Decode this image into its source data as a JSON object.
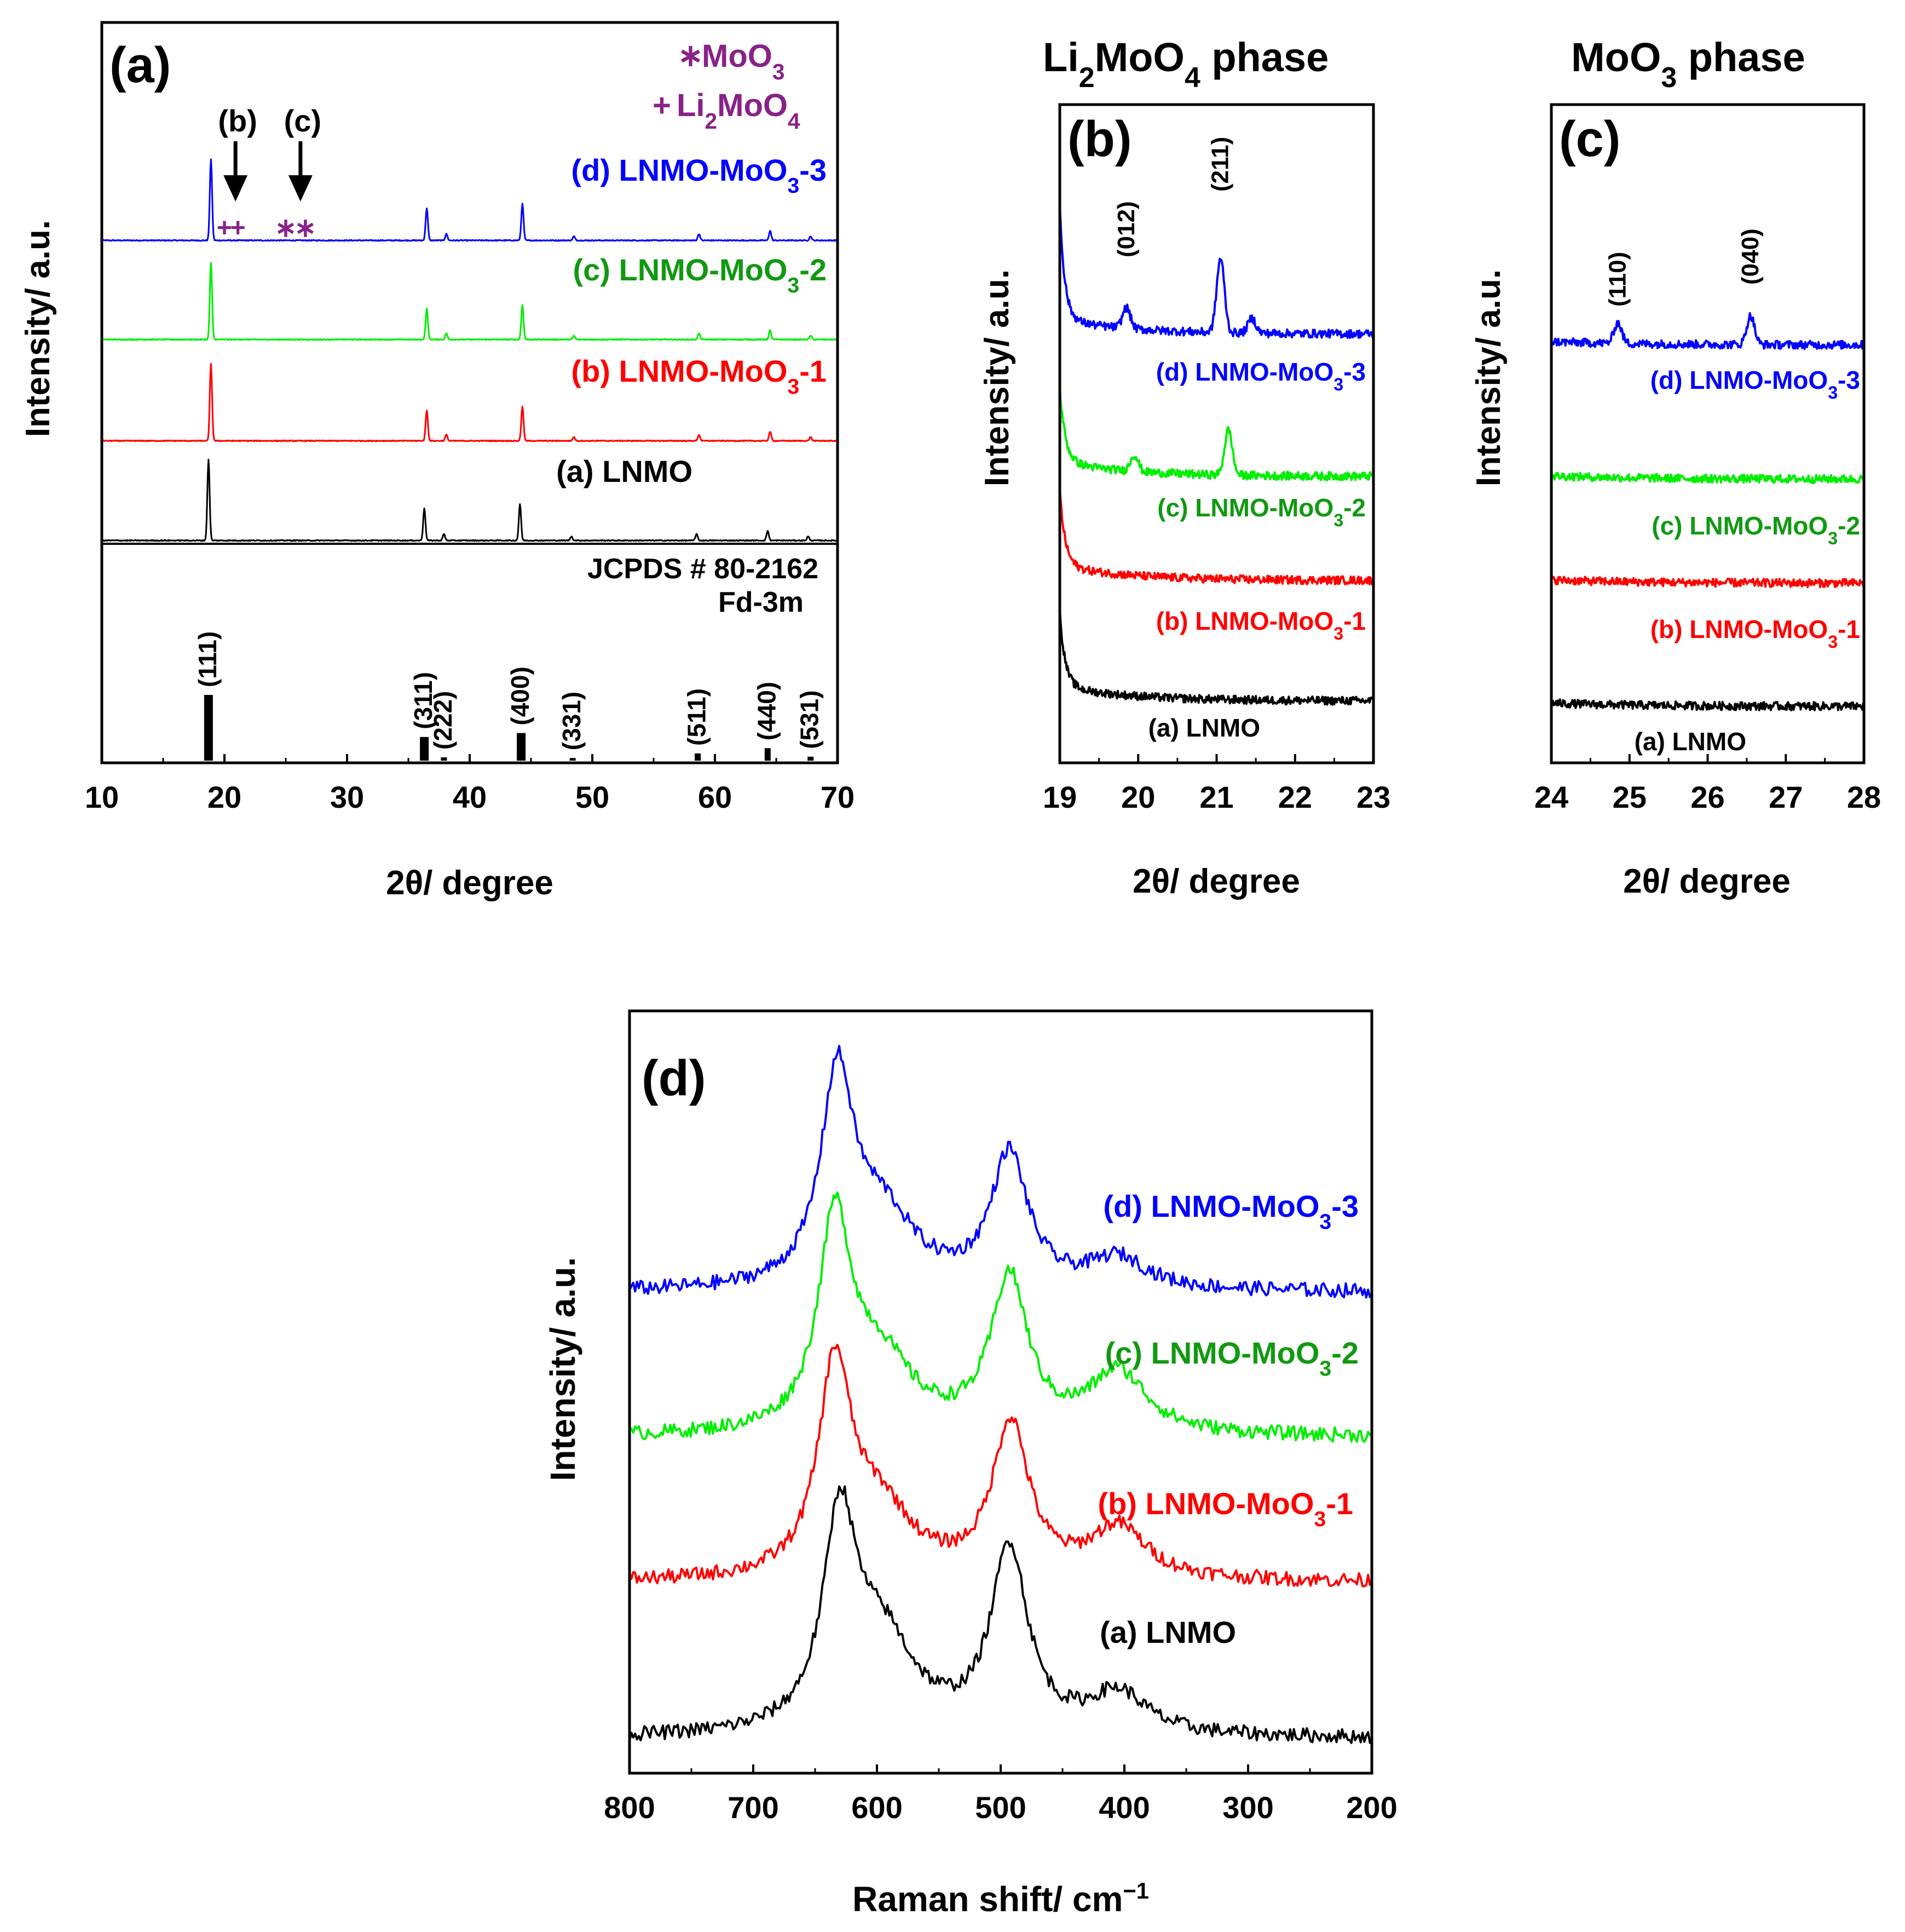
{
  "figure": {
    "colors": {
      "a": "#000000",
      "b": "#ff0000",
      "c": "#00ee00",
      "d": "#0000ff",
      "annot": "#882288",
      "label_green": "#119911"
    }
  },
  "chart_data": [
    {
      "id": "panel-a",
      "type": "line",
      "panel_label": "(a)",
      "xlabel": "2θ/ degree",
      "ylabel": "Intensity/ a.u.",
      "xlim": [
        10,
        70
      ],
      "xticks": [
        "10",
        "20",
        "30",
        "40",
        "50",
        "60",
        "70"
      ],
      "legend": {
        "moo3": {
          "symbol": "∗",
          "text": "MoO3"
        },
        "li2moo4": {
          "symbol": "+",
          "text": "Li2MoO4"
        }
      },
      "arrows": [
        {
          "label": "(b)",
          "x": 20.9
        },
        {
          "label": "(c)",
          "x": 26.2
        }
      ],
      "phase_marks": [
        {
          "symbol": "+",
          "x": 20.0
        },
        {
          "symbol": "+",
          "x": 21.1
        },
        {
          "symbol": "∗",
          "x": 25.0
        },
        {
          "symbol": "∗",
          "x": 26.6
        }
      ],
      "series": [
        {
          "name": "(d) LNMO-MoO3-3",
          "color": "#0000ff",
          "peaks": [
            [
              18.9,
              100
            ],
            [
              36.5,
              40
            ],
            [
              38.1,
              8
            ],
            [
              44.3,
              45
            ],
            [
              48.5,
              5
            ],
            [
              58.7,
              8
            ],
            [
              64.5,
              12
            ],
            [
              67.8,
              5
            ]
          ]
        },
        {
          "name": "(c) LNMO-MoO3-2",
          "color": "#00ee00",
          "peaks": [
            [
              18.9,
              100
            ],
            [
              36.5,
              40
            ],
            [
              38.1,
              8
            ],
            [
              44.3,
              45
            ],
            [
              48.5,
              5
            ],
            [
              58.7,
              8
            ],
            [
              64.5,
              12
            ],
            [
              67.8,
              5
            ]
          ]
        },
        {
          "name": "(b) LNMO-MoO3-1",
          "color": "#ff0000",
          "peaks": [
            [
              18.9,
              100
            ],
            [
              36.5,
              40
            ],
            [
              38.1,
              8
            ],
            [
              44.3,
              45
            ],
            [
              48.5,
              5
            ],
            [
              58.7,
              8
            ],
            [
              64.5,
              12
            ],
            [
              67.8,
              5
            ]
          ]
        },
        {
          "name": "(a) LNMO",
          "color": "#000000",
          "peaks": [
            [
              18.7,
              100
            ],
            [
              36.3,
              40
            ],
            [
              37.9,
              8
            ],
            [
              44.1,
              45
            ],
            [
              48.3,
              5
            ],
            [
              58.5,
              8
            ],
            [
              64.3,
              12
            ],
            [
              67.6,
              5
            ]
          ]
        }
      ],
      "reference": {
        "name": "JCPDS # 80-2162",
        "space_group": "Fd-3m",
        "bars": [
          {
            "hkl": "(111)",
            "x": 18.7,
            "intensity": 100
          },
          {
            "hkl": "(311)",
            "x": 36.3,
            "intensity": 36
          },
          {
            "hkl": "(222)",
            "x": 37.9,
            "intensity": 5
          },
          {
            "hkl": "(400)",
            "x": 44.2,
            "intensity": 42
          },
          {
            "hkl": "(331)",
            "x": 48.4,
            "intensity": 4
          },
          {
            "hkl": "(511)",
            "x": 58.6,
            "intensity": 11
          },
          {
            "hkl": "(440)",
            "x": 64.3,
            "intensity": 19
          },
          {
            "hkl": "(531)",
            "x": 67.8,
            "intensity": 6
          }
        ]
      }
    },
    {
      "id": "panel-b",
      "type": "line",
      "title": "Li2MoO4  phase",
      "panel_label": "(b)",
      "xlabel": "2θ/ degree",
      "ylabel": "Intensity/ a.u.",
      "xlim": [
        19,
        23
      ],
      "xticks": [
        "19",
        "20",
        "21",
        "22",
        "23"
      ],
      "peak_labels": [
        {
          "hkl": "(012)",
          "x": 19.85
        },
        {
          "hkl": "(211)",
          "x": 21.05
        }
      ],
      "series": [
        {
          "name": "(d) LNMO-MoO3-3",
          "color": "#0000ff",
          "baseline": 0.8,
          "peaks": [
            [
              19.85,
              0.25
            ],
            [
              21.05,
              0.9
            ],
            [
              21.45,
              0.18
            ]
          ]
        },
        {
          "name": "(c) LNMO-MoO3-2",
          "color": "#00ee00",
          "baseline": 0.48,
          "peaks": [
            [
              19.95,
              0.2
            ],
            [
              21.15,
              0.55
            ]
          ]
        },
        {
          "name": "(b) LNMO-MoO3-1",
          "color": "#ff0000",
          "baseline": 0.2,
          "peaks": []
        },
        {
          "name": "(a) LNMO",
          "color": "#000000",
          "baseline": 0.0,
          "peaks": []
        }
      ]
    },
    {
      "id": "panel-c",
      "type": "line",
      "title": "MoO3 phase",
      "panel_label": "(c)",
      "xlabel": "2θ/ degree",
      "ylabel": "Intensity/ a.u.",
      "xlim": [
        24,
        28
      ],
      "xticks": [
        "24",
        "25",
        "26",
        "27",
        "28"
      ],
      "peak_labels": [
        {
          "hkl": "(110)",
          "x": 24.85
        },
        {
          "hkl": "(040)",
          "x": 26.55
        }
      ],
      "series": [
        {
          "name": "(d) LNMO-MoO3-3",
          "color": "#0000ff",
          "baseline": 0.8,
          "peaks": [
            [
              24.85,
              0.25
            ],
            [
              26.55,
              0.35
            ]
          ]
        },
        {
          "name": "(c) LNMO-MoO3-2",
          "color": "#00ee00",
          "baseline": 0.52,
          "peaks": []
        },
        {
          "name": "(b) LNMO-MoO3-1",
          "color": "#ff0000",
          "baseline": 0.27,
          "peaks": []
        },
        {
          "name": "(a) LNMO",
          "color": "#000000",
          "baseline": 0.0,
          "peaks": []
        }
      ]
    },
    {
      "id": "panel-d",
      "type": "line",
      "panel_label": "(d)",
      "xlabel": "Raman shift/ cm−1",
      "ylabel": "Intensity/ a.u.",
      "xlim": [
        800,
        200
      ],
      "xticks": [
        "800",
        "700",
        "600",
        "500",
        "400",
        "300",
        "200"
      ],
      "series": [
        {
          "name": "(d) LNMO-MoO3-3",
          "color": "#0000ff",
          "peaks": [
            [
              632,
              1.0
            ],
            [
              596,
              0.35
            ],
            [
              493,
              0.65
            ],
            [
              405,
              0.15
            ]
          ]
        },
        {
          "name": "(c) LNMO-MoO3-2",
          "color": "#00ee00",
          "peaks": [
            [
              634,
              1.0
            ],
            [
              598,
              0.35
            ],
            [
              493,
              0.75
            ],
            [
              405,
              0.3
            ]
          ]
        },
        {
          "name": "(b) LNMO-MoO3-1",
          "color": "#ff0000",
          "peaks": [
            [
              634,
              1.0
            ],
            [
              598,
              0.33
            ],
            [
              492,
              0.75
            ],
            [
              405,
              0.25
            ]
          ]
        },
        {
          "name": "(a) LNMO",
          "color": "#000000",
          "peaks": [
            [
              630,
              1.0
            ],
            [
              596,
              0.45
            ],
            [
              493,
              0.9
            ],
            [
              405,
              0.2
            ]
          ]
        }
      ]
    }
  ]
}
